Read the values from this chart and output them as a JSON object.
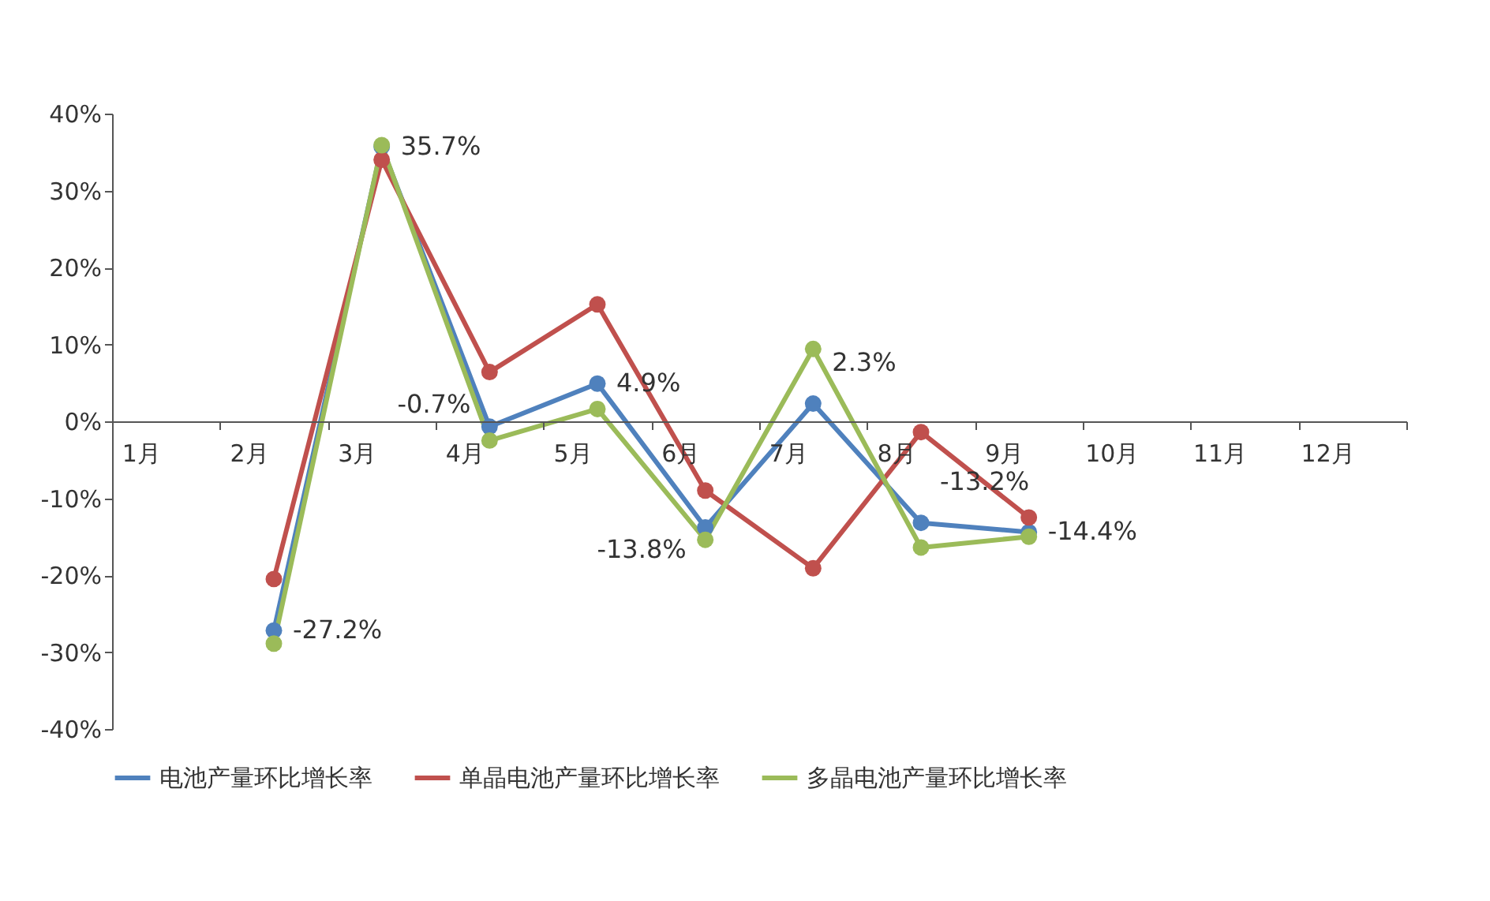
{
  "chart_data": {
    "type": "line",
    "categories": [
      "1月",
      "2月",
      "3月",
      "4月",
      "5月",
      "6月",
      "7月",
      "8月",
      "9月",
      "10月",
      "11月",
      "12月"
    ],
    "series": [
      {
        "name": "电池产量环比增长率",
        "color": "#4f81bd",
        "values": [
          null,
          -27.2,
          35.7,
          -0.7,
          4.9,
          -13.8,
          2.3,
          -13.2,
          -14.4,
          null,
          null,
          null
        ],
        "value_labels": [
          null,
          "-27.2%",
          "35.7%",
          "-0.7%",
          "4.9%",
          "-13.8%",
          "2.3%",
          "-13.2%",
          "-14.4%",
          null,
          null,
          null
        ]
      },
      {
        "name": "单晶电池产量环比增长率",
        "color": "#c0504d",
        "values": [
          null,
          -20.5,
          34,
          6.4,
          15.2,
          -9,
          -19.1,
          -1.4,
          -12.5,
          null,
          null,
          null
        ]
      },
      {
        "name": "多晶电池产量环比增长率",
        "color": "#9bbb59",
        "values": [
          null,
          -28.9,
          35.9,
          -2.5,
          1.6,
          -15.4,
          9.4,
          -16.4,
          -15,
          null,
          null,
          null
        ]
      }
    ],
    "ylim": [
      -40,
      40
    ],
    "yticks": [
      {
        "value": -40,
        "label": "-40%"
      },
      {
        "value": -30,
        "label": "-30%"
      },
      {
        "value": -20,
        "label": "-20%"
      },
      {
        "value": -10,
        "label": "-10%"
      },
      {
        "value": 0,
        "label": "0%"
      },
      {
        "value": 10,
        "label": "10%"
      },
      {
        "value": 20,
        "label": "20%"
      },
      {
        "value": 30,
        "label": "30%"
      },
      {
        "value": 40,
        "label": "40%"
      }
    ],
    "grid": false,
    "legend": "bottom",
    "marker": "circle",
    "line_style": "solid"
  }
}
